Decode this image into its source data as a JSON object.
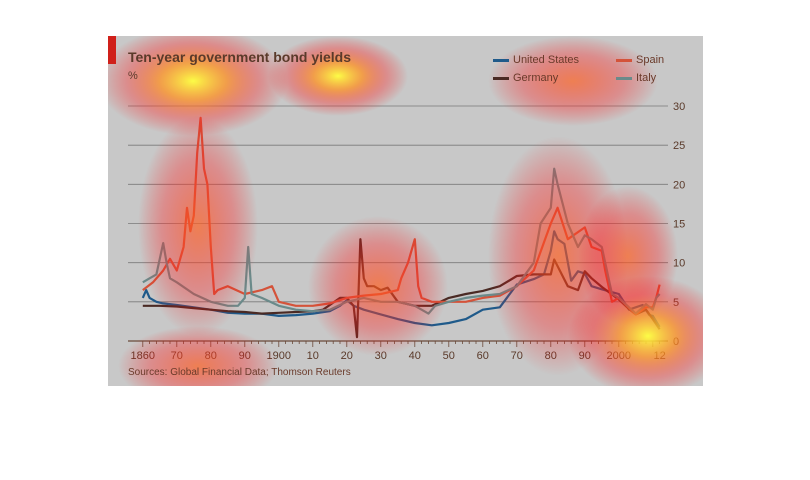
{
  "chart_data": {
    "type": "line",
    "title": "Ten-year government bond yields",
    "ylabel": "%",
    "source": "Sources: Global Financial Data; Thomson Reuters",
    "xlim": [
      1858,
      2013
    ],
    "ylim": [
      0,
      30
    ],
    "y_ticks": [
      0,
      5,
      10,
      15,
      20,
      25,
      30
    ],
    "x_ticks": [
      {
        "x": 1860,
        "label": "1860"
      },
      {
        "x": 1870,
        "label": "70"
      },
      {
        "x": 1880,
        "label": "80"
      },
      {
        "x": 1890,
        "label": "90"
      },
      {
        "x": 1900,
        "label": "1900"
      },
      {
        "x": 1910,
        "label": "10"
      },
      {
        "x": 1920,
        "label": "20"
      },
      {
        "x": 1930,
        "label": "30"
      },
      {
        "x": 1940,
        "label": "40"
      },
      {
        "x": 1950,
        "label": "50"
      },
      {
        "x": 1960,
        "label": "60"
      },
      {
        "x": 1970,
        "label": "70"
      },
      {
        "x": 1980,
        "label": "80"
      },
      {
        "x": 1990,
        "label": "90"
      },
      {
        "x": 2000,
        "label": "2000"
      },
      {
        "x": 2012,
        "label": "12"
      }
    ],
    "grid": true,
    "legend": "top-right",
    "series": [
      {
        "name": "United States",
        "color": "#1f5a8a",
        "x": [
          1860,
          1861,
          1862,
          1864,
          1866,
          1870,
          1875,
          1880,
          1885,
          1890,
          1895,
          1900,
          1905,
          1910,
          1915,
          1918,
          1920,
          1922,
          1925,
          1930,
          1935,
          1940,
          1945,
          1950,
          1955,
          1960,
          1965,
          1970,
          1975,
          1978,
          1980,
          1981,
          1982,
          1984,
          1986,
          1988,
          1990,
          1992,
          1995,
          2000,
          2003,
          2005,
          2007,
          2009,
          2010,
          2012
        ],
        "y": [
          5.5,
          6.5,
          5.5,
          5.0,
          4.8,
          4.6,
          4.3,
          4.0,
          3.6,
          3.5,
          3.5,
          3.2,
          3.3,
          3.5,
          3.8,
          4.5,
          5.2,
          4.5,
          4.0,
          3.4,
          2.8,
          2.3,
          2.0,
          2.3,
          2.8,
          4.0,
          4.3,
          7.2,
          7.9,
          8.5,
          11.5,
          14.0,
          13.0,
          12.4,
          7.7,
          8.9,
          8.6,
          7.0,
          6.6,
          6.0,
          4.0,
          4.3,
          4.6,
          3.3,
          3.2,
          1.8
        ]
      },
      {
        "name": "Germany",
        "color": "#4a2a24",
        "x": [
          1860,
          1865,
          1870,
          1875,
          1880,
          1885,
          1890,
          1895,
          1900,
          1905,
          1910,
          1913,
          1915,
          1918,
          1920,
          1922,
          1923,
          1924,
          1925,
          1926,
          1928,
          1930,
          1932,
          1935,
          1940,
          1945,
          1950,
          1955,
          1960,
          1965,
          1970,
          1975,
          1980,
          1981,
          1985,
          1988,
          1990,
          1992,
          1995,
          2000,
          2003,
          2005,
          2008,
          2010,
          2012
        ],
        "y": [
          4.5,
          4.5,
          4.4,
          4.2,
          4.0,
          3.8,
          3.7,
          3.5,
          3.6,
          3.7,
          3.8,
          4.0,
          4.6,
          5.5,
          5.5,
          4.5,
          0.5,
          13.0,
          8.0,
          7.0,
          7.0,
          6.5,
          6.8,
          5.0,
          4.5,
          4.5,
          5.5,
          6.0,
          6.4,
          7.0,
          8.3,
          8.5,
          8.5,
          10.4,
          7.0,
          6.5,
          8.9,
          8.0,
          6.9,
          5.3,
          4.1,
          3.4,
          4.0,
          2.8,
          1.5
        ]
      },
      {
        "name": "Spain",
        "color": "#d4533a",
        "x": [
          1860,
          1863,
          1866,
          1868,
          1870,
          1872,
          1873,
          1874,
          1875,
          1876,
          1877,
          1878,
          1879,
          1880,
          1881,
          1882,
          1885,
          1890,
          1895,
          1898,
          1900,
          1905,
          1910,
          1915,
          1920,
          1925,
          1930,
          1935,
          1936,
          1938,
          1940,
          1941,
          1942,
          1945,
          1950,
          1955,
          1960,
          1965,
          1970,
          1975,
          1980,
          1982,
          1985,
          1990,
          1992,
          1995,
          1996,
          1998,
          2000,
          2005,
          2008,
          2010,
          2011,
          2012
        ],
        "y": [
          6.5,
          7.5,
          9.0,
          10.5,
          9.0,
          12.0,
          17.0,
          14.0,
          16.0,
          24.0,
          28.5,
          22.0,
          20.0,
          12.0,
          6.0,
          6.5,
          7.0,
          6.0,
          6.5,
          7.0,
          5.0,
          4.5,
          4.5,
          4.8,
          5.5,
          5.8,
          6.0,
          6.5,
          8.0,
          10.0,
          13.0,
          7.0,
          5.5,
          5.0,
          5.0,
          5.0,
          5.5,
          5.8,
          7.0,
          9.0,
          15.0,
          17.0,
          13.0,
          14.5,
          12.0,
          11.5,
          9.0,
          5.0,
          5.5,
          3.4,
          4.3,
          4.3,
          5.5,
          7.2
        ]
      },
      {
        "name": "Italy",
        "color": "#6a8a8a",
        "x": [
          1860,
          1862,
          1864,
          1866,
          1867,
          1868,
          1870,
          1875,
          1880,
          1885,
          1888,
          1890,
          1891,
          1892,
          1895,
          1900,
          1905,
          1910,
          1915,
          1920,
          1925,
          1930,
          1935,
          1940,
          1944,
          1946,
          1950,
          1955,
          1960,
          1965,
          1970,
          1975,
          1977,
          1980,
          1981,
          1982,
          1985,
          1988,
          1990,
          1992,
          1995,
          1998,
          2000,
          2005,
          2008,
          2010,
          2011,
          2012
        ],
        "y": [
          7.5,
          8.0,
          8.5,
          12.5,
          10.0,
          8.0,
          7.5,
          6.0,
          5.0,
          4.5,
          4.5,
          5.5,
          12.0,
          6.0,
          5.5,
          4.5,
          4.0,
          3.8,
          4.0,
          5.0,
          5.5,
          5.0,
          5.0,
          4.5,
          3.5,
          4.5,
          5.0,
          5.5,
          5.8,
          6.0,
          7.0,
          10.0,
          15.0,
          17.0,
          22.0,
          20.0,
          15.0,
          12.0,
          13.5,
          13.0,
          12.0,
          6.0,
          5.5,
          3.5,
          4.7,
          4.0,
          5.5,
          6.0
        ]
      }
    ]
  }
}
